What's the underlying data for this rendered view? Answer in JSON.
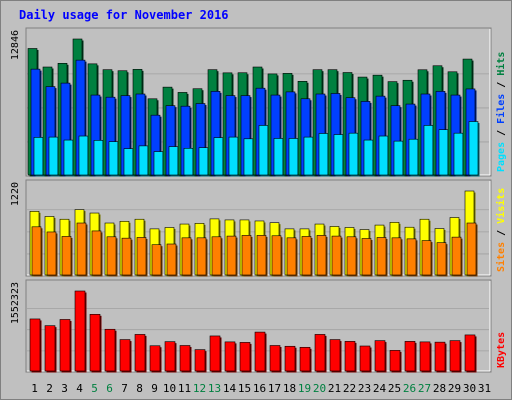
{
  "chart_data": {
    "type": "bar",
    "title": "Daily usage for November 2016",
    "categories": [
      "1",
      "2",
      "3",
      "4",
      "5",
      "6",
      "7",
      "8",
      "9",
      "10",
      "11",
      "12",
      "13",
      "14",
      "15",
      "16",
      "17",
      "18",
      "19",
      "20",
      "21",
      "22",
      "23",
      "24",
      "25",
      "26",
      "27",
      "28",
      "29",
      "30",
      "31"
    ],
    "weekend_days": [
      "5",
      "6",
      "12",
      "13",
      "19",
      "20",
      "26",
      "27"
    ],
    "panels": [
      {
        "name": "hits_files_pages",
        "max_label": "12846",
        "ymax": 12846,
        "legend": [
          "Pages",
          "Files",
          "Hits"
        ],
        "series": [
          {
            "name": "Hits",
            "color": "#008040",
            "values": [
              11950,
              10200,
              10550,
              12846,
              10500,
              9950,
              9850,
              9980,
              7200,
              8300,
              7800,
              8150,
              9950,
              9650,
              9660,
              10200,
              9550,
              9600,
              8850,
              9950,
              9950,
              9680,
              9250,
              9430,
              8820,
              8950,
              9940,
              10320,
              9750,
              10950
            ]
          },
          {
            "name": "Files",
            "color": "#0040ff",
            "values": [
              10000,
              8350,
              8680,
              10850,
              7550,
              7350,
              7500,
              7650,
              5650,
              6550,
              6500,
              6750,
              7900,
              7500,
              7500,
              8200,
              7550,
              7850,
              7200,
              7650,
              7700,
              7300,
              6950,
              7450,
              6550,
              6700,
              7650,
              7900,
              7550,
              8130
            ]
          },
          {
            "name": "Pages",
            "color": "#00e0ff",
            "values": [
              3550,
              3580,
              3300,
              3680,
              3270,
              3150,
              2490,
              2750,
              2210,
              2680,
              2520,
              2580,
              3530,
              3580,
              3420,
              4680,
              3450,
              3450,
              3580,
              3920,
              3820,
              3950,
              3300,
              3680,
              3200,
              3380,
              4680,
              4280,
              3950,
              5050
            ]
          }
        ]
      },
      {
        "name": "visits_sites",
        "max_label": "1220",
        "ymax": 1220,
        "legend": [
          "Sites",
          "Visits"
        ],
        "series": [
          {
            "name": "Visits",
            "color": "#ffff00",
            "values": [
              925,
              850,
              810,
              950,
              900,
              755,
              780,
              810,
              670,
              690,
              740,
              750,
              815,
              800,
              800,
              785,
              760,
              670,
              670,
              740,
              705,
              690,
              660,
              725,
              765,
              694,
              810,
              675,
              835,
              1220
            ]
          },
          {
            "name": "Sites",
            "color": "#ff8000",
            "values": [
              700,
              625,
              560,
              755,
              640,
              555,
              535,
              545,
              440,
              450,
              540,
              540,
              555,
              565,
              575,
              575,
              570,
              540,
              560,
              575,
              565,
              555,
              530,
              545,
              540,
              525,
              500,
              470,
              550,
              755
            ]
          }
        ]
      },
      {
        "name": "kbytes",
        "max_label": "1552323",
        "ymax": 1552323,
        "legend": [
          "KBytes"
        ],
        "series": [
          {
            "name": "KBytes",
            "color": "#ff0000",
            "values": [
              1010000,
              880000,
              1000000,
              1552323,
              1100000,
              810000,
              610000,
              710000,
              490000,
              570000,
              495000,
              415000,
              680000,
              565000,
              555000,
              755000,
              495000,
              480000,
              460000,
              710000,
              610000,
              575000,
              485000,
              590000,
              400000,
              575000,
              565000,
              560000,
              590000,
              700000
            ]
          }
        ]
      }
    ]
  }
}
